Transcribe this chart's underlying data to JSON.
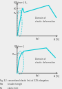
{
  "bg_color": "#eeeeee",
  "fig_bg": "#eeeeee",
  "curve_color": "#00c8d4",
  "axis_color": "#666666",
  "text_color": "#444444",
  "caption_color": "#333333",
  "panel_a": {
    "ylabel_top": "R[N/mm²] Rₘ",
    "xlabel": "A [%]",
    "Re_label": "Rᵉ",
    "Ra_label": "Rₐ",
    "domain_text": "Domain of\nelastic deformation",
    "panel_label": "(a)"
  },
  "panel_b": {
    "ylabel_top": "R[N/mm²]",
    "xlabel": "A [%]",
    "Rp_label": "Rₚ₀₂",
    "domain_text": "Domain of\nelastic deformation",
    "panel_label": "(b)"
  },
  "caption_lines": [
    "Fig. 3.2  conventional elastic limit at 0.2% elongation",
    "Rm        tensile strength",
    "Re         elastic limit"
  ]
}
